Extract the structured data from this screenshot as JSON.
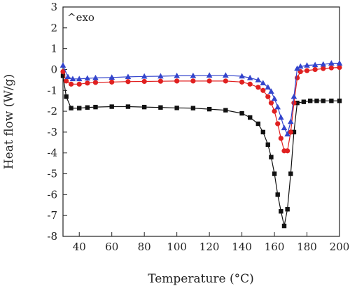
{
  "chart_data": {
    "type": "line",
    "title": "",
    "xlabel": "Temperature (°C)",
    "ylabel": "Heat flow (W/g)",
    "annotation": "^exo",
    "xlim": [
      30,
      200
    ],
    "ylim": [
      -8,
      3
    ],
    "xticks": [
      40,
      60,
      80,
      100,
      120,
      140,
      160,
      180,
      200
    ],
    "yticks": [
      3,
      2,
      1,
      0,
      -1,
      -2,
      -3,
      -4,
      -5,
      -6,
      -7,
      -8
    ],
    "grid": false,
    "legend": "none",
    "series": [
      {
        "marker": "square",
        "color": "#111111",
        "x": [
          30,
          32,
          35,
          40,
          45,
          50,
          60,
          70,
          80,
          90,
          100,
          110,
          120,
          130,
          140,
          145,
          150,
          153,
          156,
          158,
          160,
          162,
          164,
          166,
          168,
          170,
          172,
          174,
          178,
          182,
          186,
          190,
          195,
          200
        ],
        "y": [
          -0.3,
          -1.3,
          -1.85,
          -1.85,
          -1.82,
          -1.8,
          -1.78,
          -1.78,
          -1.8,
          -1.82,
          -1.84,
          -1.85,
          -1.9,
          -1.95,
          -2.1,
          -2.3,
          -2.6,
          -3.0,
          -3.6,
          -4.2,
          -5.0,
          -6.0,
          -6.8,
          -7.5,
          -6.7,
          -5.0,
          -3.0,
          -1.6,
          -1.55,
          -1.5,
          -1.5,
          -1.5,
          -1.5,
          -1.5
        ]
      },
      {
        "marker": "circle",
        "color": "#e02020",
        "x": [
          30,
          32,
          35,
          40,
          45,
          50,
          60,
          70,
          80,
          90,
          100,
          110,
          120,
          130,
          140,
          145,
          150,
          153,
          156,
          158,
          160,
          162,
          164,
          166,
          168,
          170,
          172,
          174,
          176,
          180,
          185,
          190,
          195,
          200
        ],
        "y": [
          -0.1,
          -0.55,
          -0.7,
          -0.7,
          -0.65,
          -0.62,
          -0.6,
          -0.58,
          -0.57,
          -0.56,
          -0.55,
          -0.55,
          -0.55,
          -0.55,
          -0.6,
          -0.7,
          -0.85,
          -1.0,
          -1.3,
          -1.6,
          -2.0,
          -2.6,
          -3.3,
          -3.9,
          -3.9,
          -3.0,
          -1.6,
          -0.4,
          -0.1,
          -0.05,
          0.0,
          0.05,
          0.08,
          0.1
        ]
      },
      {
        "marker": "triangle",
        "color": "#3344cc",
        "x": [
          30,
          33,
          36,
          40,
          45,
          50,
          60,
          70,
          80,
          90,
          100,
          110,
          120,
          130,
          140,
          145,
          150,
          153,
          156,
          158,
          160,
          162,
          164,
          166,
          168,
          170,
          172,
          174,
          176,
          180,
          185,
          190,
          195,
          200
        ],
        "y": [
          0.2,
          -0.35,
          -0.45,
          -0.45,
          -0.42,
          -0.4,
          -0.38,
          -0.35,
          -0.33,
          -0.32,
          -0.3,
          -0.3,
          -0.28,
          -0.28,
          -0.32,
          -0.4,
          -0.5,
          -0.65,
          -0.85,
          -1.05,
          -1.4,
          -1.8,
          -2.3,
          -2.8,
          -3.1,
          -2.5,
          -1.3,
          0.05,
          0.15,
          0.2,
          0.22,
          0.25,
          0.3,
          0.3
        ]
      }
    ]
  }
}
